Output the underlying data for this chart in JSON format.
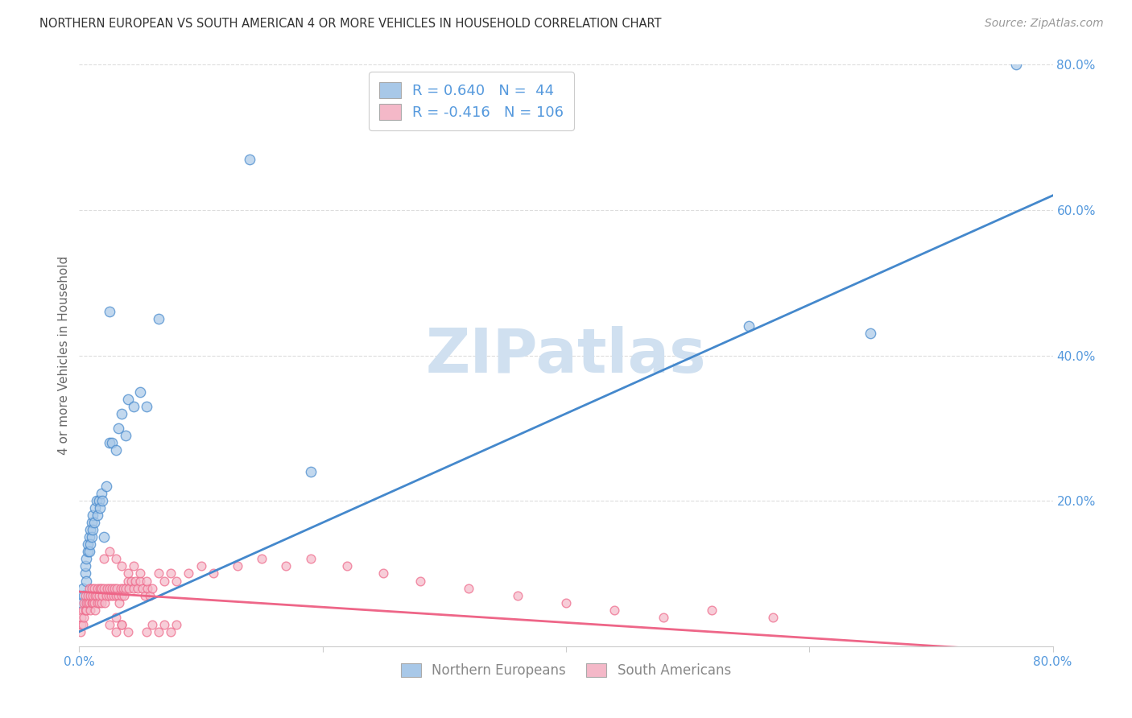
{
  "title": "NORTHERN EUROPEAN VS SOUTH AMERICAN 4 OR MORE VEHICLES IN HOUSEHOLD CORRELATION CHART",
  "source": "Source: ZipAtlas.com",
  "ylabel": "4 or more Vehicles in Household",
  "legend_entry1": "R = 0.640   N =  44",
  "legend_entry2": "R = -0.416   N = 106",
  "legend_label1": "Northern Europeans",
  "legend_label2": "South Americans",
  "blue_color": "#a8c8e8",
  "pink_color": "#f4b8c8",
  "blue_line_color": "#4488cc",
  "pink_line_color": "#ee6688",
  "blue_scatter_x": [
    0.002,
    0.003,
    0.004,
    0.005,
    0.005,
    0.006,
    0.006,
    0.007,
    0.007,
    0.008,
    0.008,
    0.009,
    0.009,
    0.01,
    0.01,
    0.011,
    0.011,
    0.012,
    0.013,
    0.014,
    0.015,
    0.016,
    0.017,
    0.018,
    0.019,
    0.02,
    0.022,
    0.025,
    0.027,
    0.03,
    0.032,
    0.035,
    0.038,
    0.04,
    0.045,
    0.05,
    0.055,
    0.065,
    0.14,
    0.19,
    0.55,
    0.65,
    0.77,
    0.025
  ],
  "blue_scatter_y": [
    0.06,
    0.08,
    0.07,
    0.1,
    0.11,
    0.12,
    0.09,
    0.13,
    0.14,
    0.13,
    0.15,
    0.14,
    0.16,
    0.15,
    0.17,
    0.16,
    0.18,
    0.17,
    0.19,
    0.2,
    0.18,
    0.2,
    0.19,
    0.21,
    0.2,
    0.15,
    0.22,
    0.28,
    0.28,
    0.27,
    0.3,
    0.32,
    0.29,
    0.34,
    0.33,
    0.35,
    0.33,
    0.45,
    0.67,
    0.24,
    0.44,
    0.43,
    0.8,
    0.46
  ],
  "pink_scatter_x": [
    0.001,
    0.002,
    0.002,
    0.003,
    0.003,
    0.004,
    0.004,
    0.005,
    0.005,
    0.006,
    0.006,
    0.007,
    0.007,
    0.008,
    0.008,
    0.009,
    0.009,
    0.01,
    0.01,
    0.011,
    0.011,
    0.012,
    0.012,
    0.013,
    0.013,
    0.014,
    0.015,
    0.015,
    0.016,
    0.016,
    0.017,
    0.018,
    0.018,
    0.019,
    0.02,
    0.021,
    0.022,
    0.023,
    0.024,
    0.025,
    0.026,
    0.027,
    0.028,
    0.029,
    0.03,
    0.031,
    0.032,
    0.033,
    0.034,
    0.035,
    0.036,
    0.037,
    0.038,
    0.04,
    0.041,
    0.043,
    0.045,
    0.046,
    0.048,
    0.05,
    0.052,
    0.054,
    0.056,
    0.058,
    0.06,
    0.065,
    0.07,
    0.075,
    0.08,
    0.09,
    0.1,
    0.11,
    0.13,
    0.15,
    0.17,
    0.19,
    0.22,
    0.25,
    0.28,
    0.32,
    0.36,
    0.4,
    0.44,
    0.48,
    0.52,
    0.57,
    0.02,
    0.025,
    0.03,
    0.035,
    0.04,
    0.045,
    0.05,
    0.055,
    0.03,
    0.035,
    0.04,
    0.025,
    0.03,
    0.035,
    0.055,
    0.06,
    0.065,
    0.07,
    0.075,
    0.08
  ],
  "pink_scatter_y": [
    0.02,
    0.03,
    0.04,
    0.03,
    0.05,
    0.04,
    0.06,
    0.05,
    0.07,
    0.05,
    0.06,
    0.06,
    0.07,
    0.06,
    0.08,
    0.05,
    0.07,
    0.06,
    0.08,
    0.06,
    0.07,
    0.06,
    0.08,
    0.07,
    0.05,
    0.07,
    0.06,
    0.08,
    0.06,
    0.07,
    0.08,
    0.06,
    0.08,
    0.07,
    0.08,
    0.06,
    0.07,
    0.08,
    0.07,
    0.08,
    0.07,
    0.08,
    0.07,
    0.08,
    0.07,
    0.08,
    0.07,
    0.06,
    0.08,
    0.07,
    0.08,
    0.07,
    0.08,
    0.09,
    0.08,
    0.09,
    0.08,
    0.09,
    0.08,
    0.09,
    0.08,
    0.07,
    0.08,
    0.07,
    0.08,
    0.1,
    0.09,
    0.1,
    0.09,
    0.1,
    0.11,
    0.1,
    0.11,
    0.12,
    0.11,
    0.12,
    0.11,
    0.1,
    0.09,
    0.08,
    0.07,
    0.06,
    0.05,
    0.04,
    0.05,
    0.04,
    0.12,
    0.13,
    0.12,
    0.11,
    0.1,
    0.11,
    0.1,
    0.09,
    0.04,
    0.03,
    0.02,
    0.03,
    0.02,
    0.03,
    0.02,
    0.03,
    0.02,
    0.03,
    0.02,
    0.03
  ],
  "blue_trendline_x": [
    0.0,
    0.8
  ],
  "blue_trendline_y": [
    0.02,
    0.62
  ],
  "pink_trendline_x": [
    0.0,
    0.8
  ],
  "pink_trendline_y": [
    0.075,
    -0.01
  ],
  "xlim": [
    0.0,
    0.8
  ],
  "ylim": [
    0.0,
    0.8
  ],
  "ytick_vals": [
    0.0,
    0.2,
    0.4,
    0.6,
    0.8
  ],
  "ytick_labels": [
    "",
    "20.0%",
    "40.0%",
    "60.0%",
    "80.0%"
  ],
  "xtick_vals": [
    0.0,
    0.2,
    0.4,
    0.6,
    0.8
  ],
  "xtick_labels_show": [
    "0.0%",
    "80.0%"
  ],
  "background_color": "#ffffff",
  "watermark_text": "ZIPatlas",
  "watermark_color": "#d0e0f0",
  "grid_color": "#dddddd",
  "tick_label_color": "#5599dd",
  "bottom_label_color": "#888888"
}
